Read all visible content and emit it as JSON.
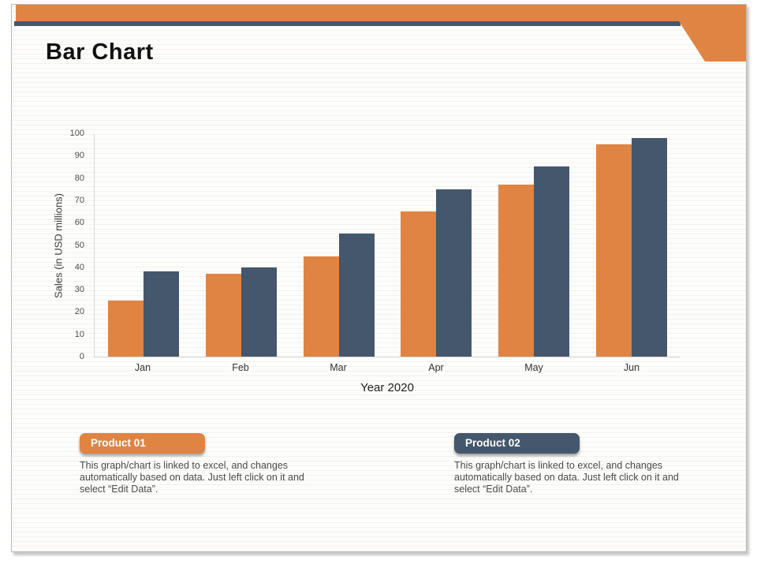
{
  "slide": {
    "title": "Bar Chart",
    "accent_color": "#E08443",
    "secondary_color": "#44576C"
  },
  "chart_data": {
    "type": "bar",
    "title": "",
    "categories": [
      "Jan",
      "Feb",
      "Mar",
      "Apr",
      "May",
      "Jun"
    ],
    "series": [
      {
        "name": "Product 01",
        "color": "#E08443",
        "values": [
          25,
          37,
          45,
          65,
          77,
          95
        ]
      },
      {
        "name": "Product 02",
        "color": "#44576C",
        "values": [
          38,
          40,
          55,
          75,
          85,
          98
        ]
      }
    ],
    "xlabel": "Year 2020",
    "ylabel": "Sales (in USD millions)",
    "ylim": [
      0,
      100
    ],
    "ytick_step": 10,
    "grid": false,
    "legend_position": "bottom"
  },
  "legend": {
    "items": [
      {
        "label": "Product 01",
        "color": "#E08443",
        "lines": [
          "This graph/chart is linked to excel,  and changes",
          "automatically based on data. Just left click on it and",
          "select “Edit Data”."
        ]
      },
      {
        "label": "Product 02",
        "color": "#44576C",
        "lines": [
          "This graph/chart is linked to excel,  and changes",
          "automatically based on data. Just left click on it and",
          "select “Edit Data”."
        ]
      }
    ]
  }
}
